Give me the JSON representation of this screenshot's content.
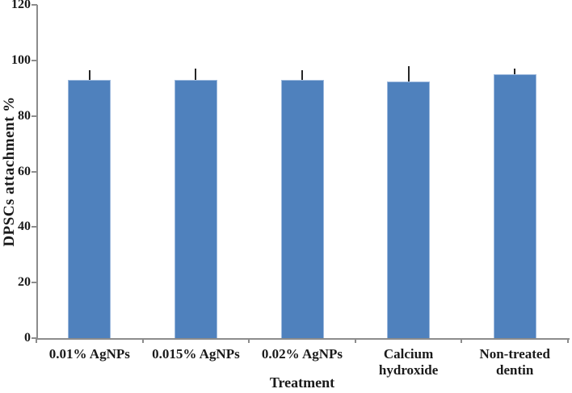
{
  "chart_data": {
    "type": "bar",
    "title": "",
    "xlabel": "Treatment",
    "ylabel": "DPSCs attachment %",
    "categories": [
      "0.01% AgNPs",
      "0.015% AgNPs",
      "0.02% AgNPs",
      "Calcium hydroxide",
      "Non-treated dentin"
    ],
    "values": [
      93,
      93,
      93,
      92.5,
      95
    ],
    "error_plus": [
      3.5,
      4,
      3.5,
      5.5,
      2
    ],
    "ylim": [
      0,
      120
    ],
    "yticks": [
      0,
      20,
      40,
      60,
      80,
      100,
      120
    ],
    "grid": false,
    "legend": "none",
    "bar_color": "#4F81BD",
    "bar_border_color": "#9DB9DD",
    "error_bar_color": "#262626",
    "axis_color": "#8C8C8C",
    "text_color": "#1A1A1A"
  }
}
